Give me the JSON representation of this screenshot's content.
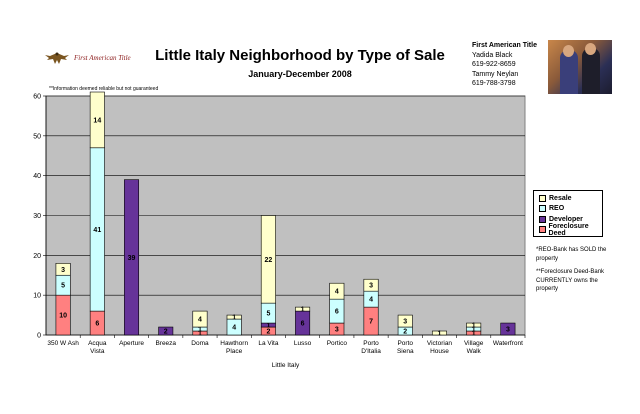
{
  "header": {
    "logo_text": "First American Title",
    "title": "Little Italy Neighborhood by Type of Sale",
    "subtitle": "January-December 2008",
    "disclaimer": "**Information deemed reliable but not guaranteed"
  },
  "contact": {
    "company": "First American Title",
    "name1": "Yadida Black",
    "phone1": "619-922-8659",
    "name2": "Tammy Neylan",
    "phone2": "619-788-3798"
  },
  "notes": {
    "reo": "*REO-Bank has SOLD the property",
    "foreclosure": "**Foreclosure Deed-Bank CURRENTLY owns the property"
  },
  "colors": {
    "plot_bg": "#c0c0c0",
    "resale": "#ffffcc",
    "reo": "#ccffff",
    "developer": "#663399",
    "foreclosure": "#ff8080"
  },
  "chart_data": {
    "type": "bar",
    "stacked": true,
    "title": "Little Italy Neighborhood by Type of Sale",
    "xlabel": "Little Italy",
    "ylabel": "",
    "ylim": [
      0,
      60
    ],
    "yticks": [
      0,
      10,
      20,
      30,
      40,
      50,
      60
    ],
    "grid": true,
    "legend_position": "right",
    "categories": [
      "350 W Ash",
      "Acqua Vista",
      "Aperture",
      "Breeza",
      "Doma",
      "Hawthorn Place",
      "La Vita",
      "Lusso",
      "Portico",
      "Porto D'Italia",
      "Porto Siena",
      "Victorian House",
      "Village Walk",
      "Waterfront"
    ],
    "category_labels": [
      [
        "350 W Ash"
      ],
      [
        "Acqua",
        "Vista"
      ],
      [
        "Aperture"
      ],
      [
        "Breeza"
      ],
      [
        "Doma"
      ],
      [
        "Hawthorn",
        "Place"
      ],
      [
        "La Vita"
      ],
      [
        "Lusso"
      ],
      [
        "Portico"
      ],
      [
        "Porto",
        "D'Italia"
      ],
      [
        "Porto",
        "Siena"
      ],
      [
        "Victorian",
        "House"
      ],
      [
        "Village",
        "Walk"
      ],
      [
        "Waterfront"
      ]
    ],
    "series": [
      {
        "name": "Foreclosure Deed",
        "color": "#ff8080",
        "values": [
          10,
          6,
          0,
          0,
          1,
          0,
          2,
          0,
          3,
          7,
          0,
          0,
          1,
          0
        ],
        "labels": [
          "10",
          "6",
          "",
          "",
          "1",
          "",
          "2",
          "",
          "3",
          "7",
          "",
          "",
          "1",
          ""
        ]
      },
      {
        "name": "Developer",
        "color": "#663399",
        "values": [
          0,
          0,
          39,
          2,
          0,
          0,
          1,
          6,
          0,
          0,
          0,
          0,
          0,
          3
        ],
        "labels": [
          "",
          "",
          "39",
          "2",
          "",
          "",
          "1",
          "6",
          "",
          "",
          "",
          "",
          "",
          "3"
        ]
      },
      {
        "name": "REO",
        "color": "#ccffff",
        "values": [
          5,
          41,
          0,
          0,
          1,
          4,
          5,
          0,
          6,
          4,
          2,
          0,
          1,
          0
        ],
        "labels": [
          "5",
          "41",
          "",
          "",
          "1",
          "4",
          "5",
          "",
          "6",
          "4",
          "2",
          "",
          "1",
          ""
        ]
      },
      {
        "name": "Resale",
        "color": "#ffffcc",
        "values": [
          3,
          14,
          0,
          0,
          4,
          1,
          22,
          1,
          4,
          3,
          3,
          1,
          1,
          0
        ],
        "labels": [
          "3",
          "14",
          "",
          "",
          "4",
          "1",
          "22",
          "1",
          "4",
          "3",
          "3",
          "1",
          "1",
          ""
        ]
      }
    ],
    "legend_order": [
      "Resale",
      "REO",
      "Developer",
      "Foreclosure Deed"
    ]
  }
}
